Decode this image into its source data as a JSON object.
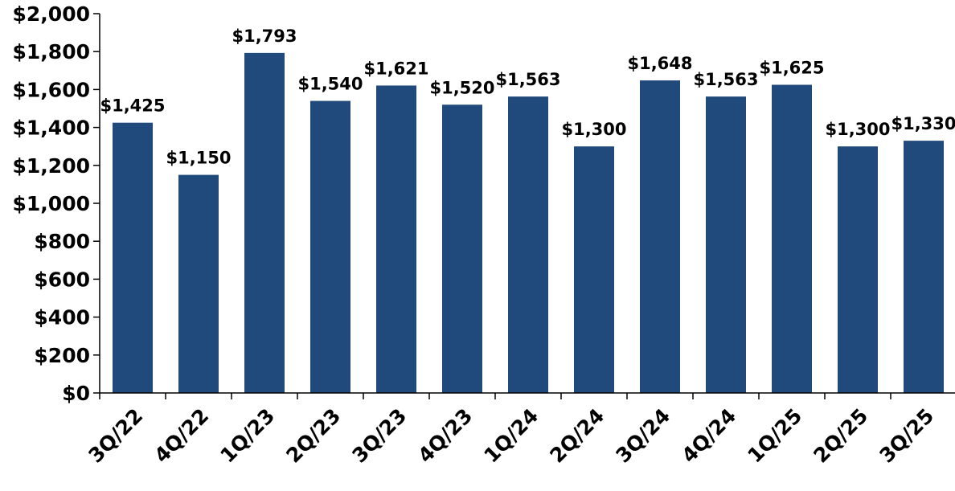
{
  "chart_data": {
    "type": "bar",
    "title": "",
    "xlabel": "",
    "ylabel": "",
    "categories": [
      "3Q/22",
      "4Q/22",
      "1Q/23",
      "2Q/23",
      "3Q/23",
      "4Q/23",
      "1Q/24",
      "2Q/24",
      "3Q/24",
      "4Q/24",
      "1Q/25",
      "2Q/25",
      "3Q/25"
    ],
    "values": [
      1425,
      1150,
      1793,
      1540,
      1621,
      1520,
      1563,
      1300,
      1648,
      1563,
      1625,
      1300,
      1330
    ],
    "data_labels": [
      "$1,425",
      "$1,150",
      "$1,793",
      "$1,540",
      "$1,621",
      "$1,520",
      "$1,563",
      "$1,300",
      "$1,648",
      "$1,563",
      "$1,625",
      "$1,300",
      "$1,330"
    ],
    "ylim": [
      0,
      2000
    ],
    "yticks": [
      0,
      200,
      400,
      600,
      800,
      1000,
      1200,
      1400,
      1600,
      1800,
      2000
    ],
    "ytick_labels": [
      "$0",
      "$200",
      "$400",
      "$600",
      "$800",
      "$1,000",
      "$1,200",
      "$1,400",
      "$1,600",
      "$1,800",
      "$2,000"
    ],
    "grid": false,
    "legend": null,
    "bar_color": "#214A7C"
  }
}
